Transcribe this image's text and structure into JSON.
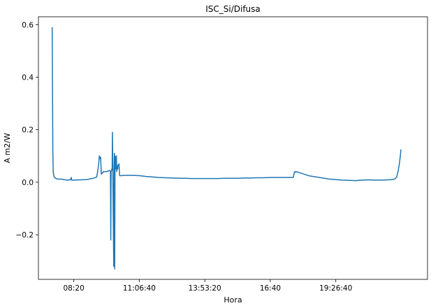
{
  "chart_data": {
    "type": "line",
    "title": "ISC_Si/Difusa",
    "xlabel": "Hora",
    "ylabel": "A m2/W",
    "x_ticks": [
      "08:20",
      "11:06:40",
      "13:53:20",
      "16:40",
      "19:26:40"
    ],
    "x_tick_values": [
      30000,
      40000,
      50000,
      60000,
      70000
    ],
    "y_ticks": [
      "−0.2",
      "0.0",
      "0.2",
      "0.4",
      "0.6"
    ],
    "y_tick_values": [
      -0.2,
      0.0,
      0.2,
      0.4,
      0.6
    ],
    "xlim": [
      24600,
      84000
    ],
    "ylim": [
      -0.37,
      0.63
    ],
    "grid": false,
    "series": [
      {
        "color": "#1f77b4",
        "x": [
          26700,
          26760,
          26800,
          26850,
          26900,
          27000,
          27200,
          27500,
          28000,
          28500,
          29000,
          29500,
          29600,
          29700,
          30000,
          31000,
          32000,
          33000,
          33500,
          33700,
          33800,
          33900,
          34000,
          34100,
          34200,
          34300,
          34400,
          34500,
          35000,
          35500,
          35600,
          35650,
          35700,
          35750,
          35800,
          35850,
          35900,
          36100,
          36150,
          36200,
          36250,
          36300,
          36350,
          36400,
          36450,
          36500,
          36550,
          36600,
          36650,
          36700,
          36750,
          36800,
          36900,
          37000,
          37100,
          37200,
          37300,
          37400,
          37500,
          38000,
          39000,
          40000,
          41000,
          42000,
          43000,
          44000,
          45000,
          46000,
          47000,
          48000,
          49000,
          50000,
          51000,
          52000,
          53000,
          54000,
          55000,
          56000,
          57000,
          58000,
          59000,
          60000,
          61000,
          62000,
          63000,
          63500,
          63700,
          63800,
          63900,
          64000,
          64500,
          65000,
          65500,
          66000,
          67000,
          68000,
          69000,
          70000,
          71000,
          72000,
          73000,
          74000,
          75000,
          76000,
          77000,
          78000,
          78500,
          79000,
          79300,
          79500,
          79700,
          79850,
          79950
        ],
        "y": [
          0.59,
          0.3,
          0.12,
          0.05,
          0.03,
          0.02,
          0.015,
          0.012,
          0.012,
          0.01,
          0.008,
          0.009,
          0.018,
          0.008,
          0.008,
          0.009,
          0.01,
          0.015,
          0.02,
          0.05,
          0.07,
          0.1,
          0.09,
          0.095,
          0.03,
          0.035,
          0.035,
          0.04,
          0.04,
          0.045,
          0.04,
          -0.22,
          0.04,
          0.045,
          0.05,
          0.045,
          0.19,
          -0.32,
          0.05,
          0.11,
          -0.33,
          0.1,
          0.06,
          0.05,
          0.09,
          0.1,
          0.04,
          0.05,
          0.06,
          0.05,
          0.065,
          0.065,
          0.07,
          0.025,
          0.025,
          0.025,
          0.025,
          0.025,
          0.026,
          0.026,
          0.026,
          0.025,
          0.022,
          0.02,
          0.018,
          0.017,
          0.016,
          0.015,
          0.015,
          0.014,
          0.014,
          0.014,
          0.014,
          0.014,
          0.015,
          0.015,
          0.015,
          0.016,
          0.016,
          0.017,
          0.017,
          0.018,
          0.018,
          0.018,
          0.018,
          0.018,
          0.04,
          0.04,
          0.038,
          0.04,
          0.036,
          0.032,
          0.028,
          0.024,
          0.02,
          0.016,
          0.012,
          0.01,
          0.008,
          0.007,
          0.006,
          0.008,
          0.009,
          0.008,
          0.008,
          0.009,
          0.01,
          0.012,
          0.02,
          0.04,
          0.07,
          0.1,
          0.125
        ]
      }
    ]
  }
}
